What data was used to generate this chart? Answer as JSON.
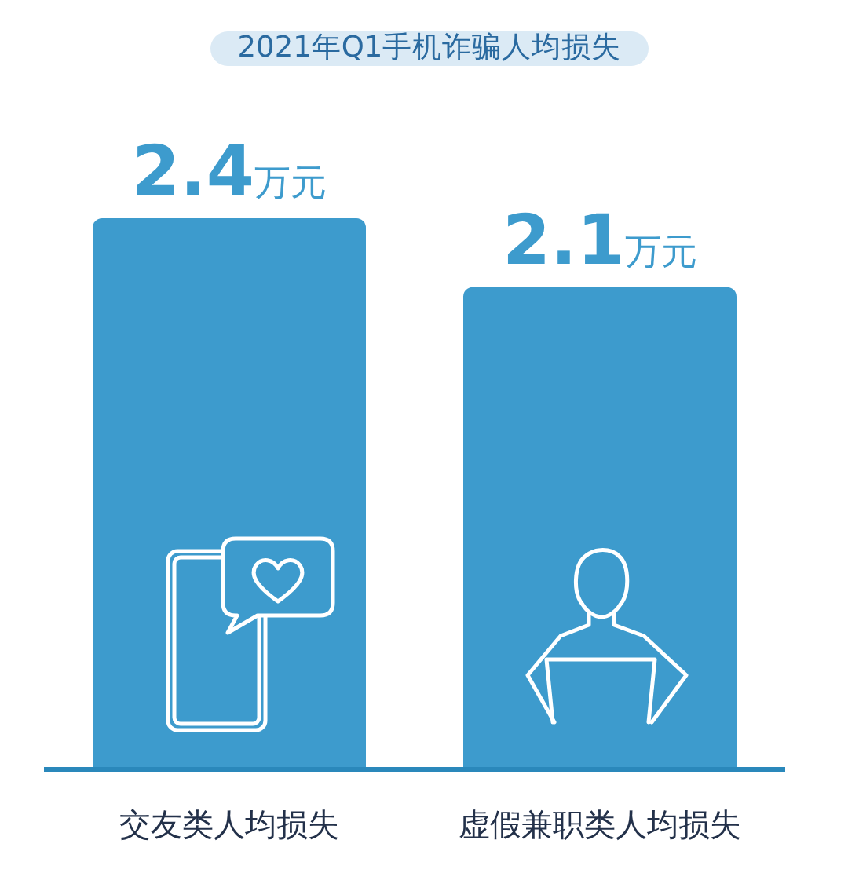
{
  "chart_data": {
    "type": "bar",
    "title": "2021年Q1手机诈骗人均损失",
    "categories": [
      "交友类人均损失",
      "虚假兼职类人均损失"
    ],
    "values": [
      2.4,
      2.1
    ],
    "color": "#3d9bcd",
    "value_labels": [
      "2.4万元",
      "2.1万元"
    ],
    "tick_labels": "x"
  }
}
